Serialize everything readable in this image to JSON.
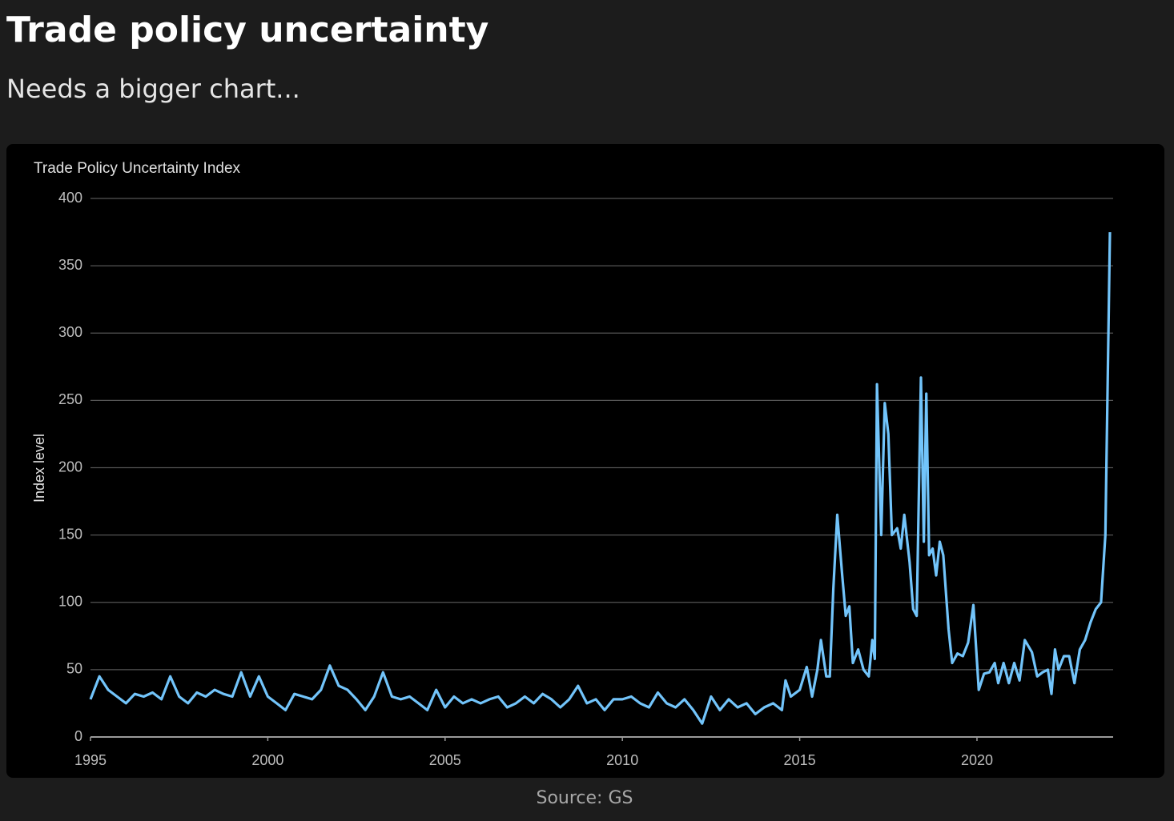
{
  "title": "Trade policy uncertainty",
  "subtitle": "Needs a bigger chart...",
  "source": "Source: GS",
  "chart_data": {
    "type": "line",
    "title": "Trade Policy Uncertainty Index",
    "y_label": "Index level",
    "x": [
      1995.0,
      1995.25,
      1995.5,
      1995.75,
      1996.0,
      1996.25,
      1996.5,
      1996.75,
      1997.0,
      1997.25,
      1997.5,
      1997.75,
      1998.0,
      1998.25,
      1998.5,
      1998.75,
      1999.0,
      1999.25,
      1999.5,
      1999.75,
      2000.0,
      2000.25,
      2000.5,
      2000.75,
      2001.0,
      2001.25,
      2001.5,
      2001.75,
      2002.0,
      2002.25,
      2002.5,
      2002.75,
      2003.0,
      2003.25,
      2003.5,
      2003.75,
      2004.0,
      2004.25,
      2004.5,
      2004.75,
      2005.0,
      2005.25,
      2005.5,
      2005.75,
      2006.0,
      2006.25,
      2006.5,
      2006.75,
      2007.0,
      2007.25,
      2007.5,
      2007.75,
      2008.0,
      2008.25,
      2008.5,
      2008.75,
      2009.0,
      2009.25,
      2009.5,
      2009.75,
      2010.0,
      2010.25,
      2010.5,
      2010.75,
      2011.0,
      2011.25,
      2011.5,
      2011.75,
      2012.0,
      2012.25,
      2012.5,
      2012.75,
      2013.0,
      2013.25,
      2013.5,
      2013.75,
      2014.0,
      2014.25,
      2014.5,
      2014.6,
      2014.75,
      2015.0,
      2015.2,
      2015.35,
      2015.5,
      2015.6,
      2015.75,
      2015.85,
      2015.95,
      2016.06,
      2016.2,
      2016.3,
      2016.4,
      2016.5,
      2016.65,
      2016.8,
      2016.95,
      2017.05,
      2017.12,
      2017.18,
      2017.3,
      2017.4,
      2017.5,
      2017.6,
      2017.75,
      2017.85,
      2017.95,
      2018.1,
      2018.2,
      2018.3,
      2018.42,
      2018.5,
      2018.57,
      2018.65,
      2018.75,
      2018.85,
      2018.95,
      2019.05,
      2019.2,
      2019.3,
      2019.45,
      2019.6,
      2019.75,
      2019.9,
      2020.05,
      2020.2,
      2020.35,
      2020.5,
      2020.6,
      2020.75,
      2020.9,
      2021.05,
      2021.2,
      2021.35,
      2021.55,
      2021.7,
      2021.85,
      2022.0,
      2022.1,
      2022.2,
      2022.3,
      2022.45,
      2022.6,
      2022.75,
      2022.9,
      2023.05,
      2023.2,
      2023.35,
      2023.5,
      2023.62,
      2023.75
    ],
    "series": [
      {
        "name": "Trade Policy Uncertainty Index",
        "color": "#72c4fa",
        "values": [
          28,
          45,
          35,
          30,
          25,
          32,
          30,
          33,
          28,
          45,
          30,
          25,
          33,
          30,
          35,
          32,
          30,
          48,
          30,
          45,
          30,
          25,
          20,
          32,
          30,
          28,
          35,
          53,
          38,
          35,
          28,
          20,
          30,
          48,
          30,
          28,
          30,
          25,
          20,
          35,
          22,
          30,
          25,
          28,
          25,
          28,
          30,
          22,
          25,
          30,
          25,
          32,
          28,
          22,
          28,
          38,
          25,
          28,
          20,
          28,
          28,
          30,
          25,
          22,
          33,
          25,
          22,
          28,
          20,
          10,
          30,
          20,
          28,
          22,
          25,
          17,
          22,
          25,
          20,
          42,
          30,
          35,
          52,
          30,
          50,
          72,
          45,
          45,
          110,
          165,
          120,
          90,
          97,
          55,
          65,
          50,
          45,
          72,
          58,
          262,
          150,
          248,
          225,
          150,
          155,
          140,
          165,
          130,
          95,
          90,
          267,
          145,
          255,
          135,
          140,
          120,
          145,
          135,
          80,
          55,
          62,
          60,
          70,
          98,
          35,
          47,
          48,
          55,
          40,
          55,
          40,
          55,
          42,
          72,
          63,
          45,
          48,
          50,
          32,
          65,
          50,
          60,
          60,
          40,
          65,
          72,
          85,
          95,
          100,
          150,
          375
        ]
      }
    ],
    "xlim": [
      1995,
      2023.84
    ],
    "xticks": [
      1995,
      2000,
      2005,
      2010,
      2015,
      2020
    ],
    "ylim": [
      0,
      400
    ],
    "yticks": [
      0,
      50,
      100,
      150,
      200,
      250,
      300,
      350,
      400
    ],
    "grid": true
  }
}
